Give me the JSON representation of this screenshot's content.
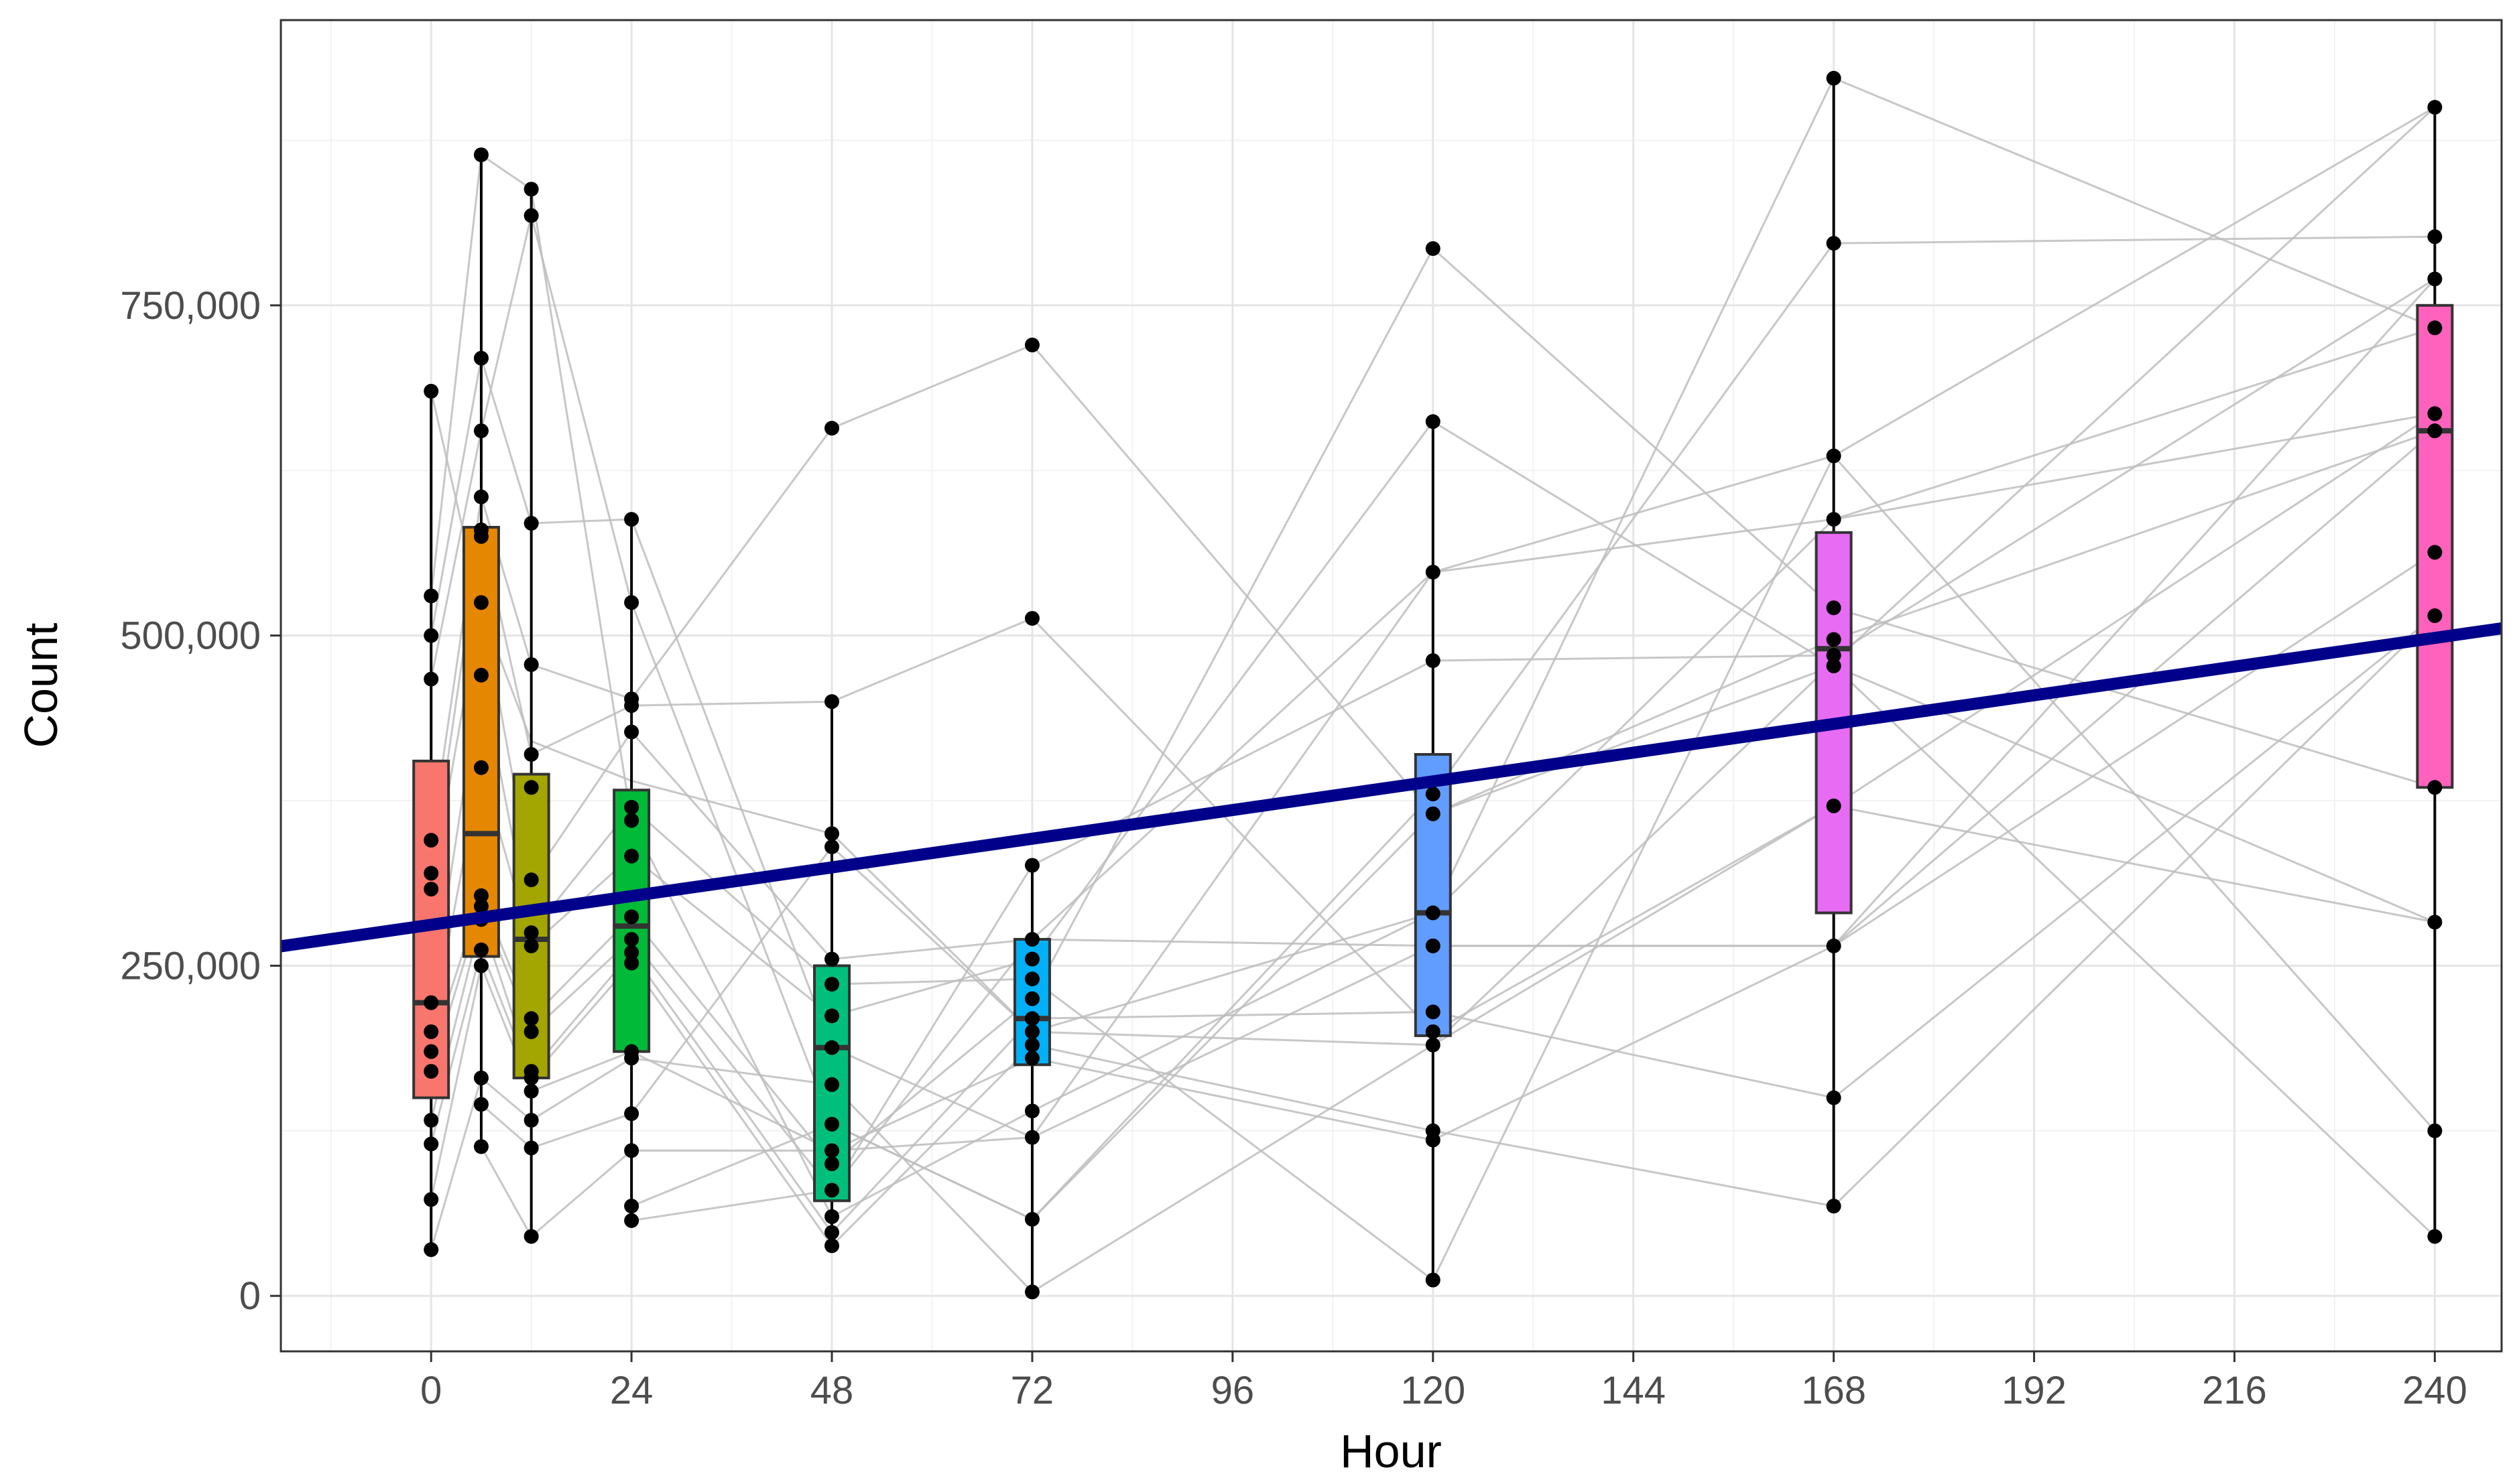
{
  "chart_data": {
    "type": "boxplot-with-points-and-trendline",
    "xlabel": "Hour",
    "ylabel": "Count",
    "xlim": [
      -18,
      248
    ],
    "ylim": [
      -42000,
      966000
    ],
    "x_ticks": [
      0,
      24,
      48,
      72,
      96,
      120,
      144,
      168,
      192,
      216,
      240
    ],
    "x_tick_labels": [
      "0",
      "24",
      "48",
      "72",
      "96",
      "120",
      "144",
      "168",
      "192",
      "216",
      "240"
    ],
    "y_ticks": [
      0,
      250000,
      500000,
      750000
    ],
    "y_tick_labels": [
      "0",
      "250,000",
      "500,000",
      "750,000"
    ],
    "grid": true,
    "boxes": [
      {
        "hour": 0,
        "color": "#F8766D",
        "q1": 150000,
        "median": 222000,
        "q3": 405000,
        "min": 35000,
        "max": 685000
      },
      {
        "hour": 6,
        "color": "#E58700",
        "q1": 257000,
        "median": 350000,
        "q3": 582000,
        "min": 113000,
        "max": 864000
      },
      {
        "hour": 12,
        "color": "#A3A500",
        "q1": 165000,
        "median": 270000,
        "q3": 395000,
        "min": 45000,
        "max": 838000
      },
      {
        "hour": 24,
        "color": "#00BA38",
        "q1": 185000,
        "median": 280000,
        "q3": 383000,
        "min": 57000,
        "max": 588000
      },
      {
        "hour": 48,
        "color": "#00BF7D",
        "q1": 72000,
        "median": 188000,
        "q3": 250000,
        "min": 38000,
        "max": 450000
      },
      {
        "hour": 72,
        "color": "#00B0F6",
        "q1": 175000,
        "median": 210000,
        "q3": 270000,
        "min": 3000,
        "max": 326000
      },
      {
        "hour": 120,
        "color": "#619CFF",
        "q1": 197000,
        "median": 290000,
        "q3": 410000,
        "min": 12000,
        "max": 662000
      },
      {
        "hour": 168,
        "color": "#E76BF3",
        "q1": 290000,
        "median": 490000,
        "q3": 578000,
        "min": 68000,
        "max": 922000
      },
      {
        "hour": 240,
        "color": "#FF62BC",
        "q1": 385000,
        "median": 655000,
        "q3": 750000,
        "min": 45000,
        "max": 900000
      }
    ],
    "points": [
      {
        "hour": 0,
        "values": [
          685000,
          530000,
          500000,
          467000,
          345000,
          320000,
          308000,
          222000,
          200000,
          185000,
          170000,
          133000,
          115000,
          73000,
          35000
        ]
      },
      {
        "hour": 6,
        "values": [
          864000,
          710000,
          655000,
          605000,
          580000,
          575000,
          525000,
          470000,
          400000,
          303000,
          295000,
          285000,
          262000,
          250000,
          165000,
          145000,
          113000
        ]
      },
      {
        "hour": 12,
        "values": [
          838000,
          818000,
          585000,
          478000,
          410000,
          385000,
          315000,
          275000,
          265000,
          210000,
          200000,
          170000,
          165000,
          155000,
          133000,
          112000,
          45000
        ]
      },
      {
        "hour": 24,
        "values": [
          588000,
          525000,
          452000,
          447000,
          427000,
          370000,
          360000,
          333000,
          287000,
          270000,
          260000,
          252000,
          185000,
          180000,
          138000,
          110000,
          68000,
          57000
        ]
      },
      {
        "hour": 48,
        "values": [
          657000,
          450000,
          350000,
          340000,
          255000,
          236000,
          212000,
          188000,
          160000,
          130000,
          110000,
          100000,
          80000,
          60000,
          48000,
          38000
        ]
      },
      {
        "hour": 72,
        "values": [
          720000,
          513000,
          326000,
          270000,
          255000,
          240000,
          225000,
          210000,
          200000,
          190000,
          180000,
          140000,
          120000,
          58000,
          3000
        ]
      },
      {
        "hour": 120,
        "values": [
          793000,
          662000,
          548000,
          481000,
          380000,
          365000,
          290000,
          265000,
          215000,
          200000,
          190000,
          125000,
          118000,
          12000
        ]
      },
      {
        "hour": 168,
        "values": [
          922000,
          797000,
          636000,
          588000,
          521000,
          497000,
          485000,
          477000,
          371000,
          265000,
          150000,
          68000
        ]
      },
      {
        "hour": 240,
        "values": [
          900000,
          802000,
          770000,
          733000,
          668000,
          655000,
          563000,
          515000,
          385000,
          283000,
          125000,
          45000
        ]
      }
    ],
    "trend_line": {
      "color": "#00008B",
      "intercept": 281000,
      "slope": 905.0,
      "x_from": -18,
      "x_to": 248
    },
    "subject_paths": [
      [
        [
          0,
          685000
        ],
        [
          6,
          520000
        ],
        [
          12,
          420000
        ],
        [
          24,
          390000
        ],
        [
          48,
          350000
        ],
        [
          72,
          200000
        ],
        [
          120,
          190000
        ],
        [
          168,
          480000
        ],
        [
          240,
          900000
        ]
      ],
      [
        [
          0,
          530000
        ],
        [
          6,
          864000
        ],
        [
          12,
          838000
        ],
        [
          24,
          360000
        ],
        [
          48,
          60000
        ],
        [
          72,
          140000
        ],
        [
          120,
          290000
        ],
        [
          168,
          922000
        ],
        [
          240,
          733000
        ]
      ],
      [
        [
          0,
          500000
        ],
        [
          6,
          710000
        ],
        [
          12,
          585000
        ],
        [
          24,
          588000
        ],
        [
          48,
          188000
        ],
        [
          72,
          120000
        ],
        [
          120,
          548000
        ],
        [
          168,
          588000
        ],
        [
          240,
          668000
        ]
      ],
      [
        [
          0,
          467000
        ],
        [
          6,
          655000
        ],
        [
          12,
          818000
        ],
        [
          24,
          525000
        ],
        [
          48,
          130000
        ],
        [
          72,
          58000
        ],
        [
          120,
          380000
        ],
        [
          168,
          797000
        ],
        [
          240,
          802000
        ]
      ],
      [
        [
          0,
          345000
        ],
        [
          6,
          605000
        ],
        [
          12,
          478000
        ],
        [
          24,
          452000
        ],
        [
          48,
          657000
        ],
        [
          72,
          720000
        ],
        [
          120,
          365000
        ],
        [
          168,
          497000
        ],
        [
          240,
          655000
        ]
      ],
      [
        [
          0,
          320000
        ],
        [
          6,
          580000
        ],
        [
          12,
          410000
        ],
        [
          24,
          447000
        ],
        [
          48,
          450000
        ],
        [
          72,
          513000
        ],
        [
          120,
          200000
        ],
        [
          168,
          371000
        ],
        [
          240,
          283000
        ]
      ],
      [
        [
          0,
          308000
        ],
        [
          6,
          525000
        ],
        [
          12,
          315000
        ],
        [
          24,
          427000
        ],
        [
          48,
          255000
        ],
        [
          72,
          270000
        ],
        [
          120,
          265000
        ],
        [
          168,
          265000
        ],
        [
          240,
          563000
        ]
      ],
      [
        [
          0,
          222000
        ],
        [
          6,
          470000
        ],
        [
          12,
          275000
        ],
        [
          24,
          370000
        ],
        [
          48,
          236000
        ],
        [
          72,
          240000
        ],
        [
          120,
          12000
        ],
        [
          168,
          636000
        ],
        [
          240,
          125000
        ]
      ],
      [
        [
          0,
          200000
        ],
        [
          6,
          400000
        ],
        [
          12,
          265000
        ],
        [
          24,
          333000
        ],
        [
          48,
          212000
        ],
        [
          72,
          255000
        ],
        [
          120,
          662000
        ],
        [
          168,
          477000
        ],
        [
          240,
          45000
        ]
      ],
      [
        [
          0,
          185000
        ],
        [
          6,
          303000
        ],
        [
          12,
          210000
        ],
        [
          24,
          287000
        ],
        [
          48,
          100000
        ],
        [
          72,
          225000
        ],
        [
          120,
          793000
        ],
        [
          168,
          521000
        ],
        [
          240,
          385000
        ]
      ],
      [
        [
          0,
          170000
        ],
        [
          6,
          295000
        ],
        [
          12,
          200000
        ],
        [
          24,
          270000
        ],
        [
          48,
          80000
        ],
        [
          72,
          326000
        ],
        [
          120,
          481000
        ],
        [
          168,
          485000
        ],
        [
          240,
          770000
        ]
      ],
      [
        [
          0,
          133000
        ],
        [
          6,
          285000
        ],
        [
          12,
          170000
        ],
        [
          24,
          260000
        ],
        [
          48,
          48000
        ],
        [
          72,
          210000
        ],
        [
          120,
          215000
        ],
        [
          168,
          150000
        ],
        [
          240,
          515000
        ]
      ],
      [
        [
          0,
          115000
        ],
        [
          6,
          262000
        ],
        [
          12,
          165000
        ],
        [
          24,
          252000
        ],
        [
          48,
          38000
        ],
        [
          72,
          190000
        ],
        [
          120,
          125000
        ],
        [
          168,
          68000
        ],
        [
          240,
          515000
        ]
      ],
      [
        [
          0,
          73000
        ],
        [
          6,
          250000
        ],
        [
          12,
          155000
        ],
        [
          24,
          185000
        ],
        [
          48,
          110000
        ],
        [
          72,
          180000
        ],
        [
          120,
          118000
        ],
        [
          168,
          265000
        ],
        [
          240,
          655000
        ]
      ],
      [
        [
          0,
          35000
        ],
        [
          6,
          165000
        ],
        [
          12,
          133000
        ],
        [
          24,
          180000
        ],
        [
          48,
          160000
        ],
        [
          72,
          3000
        ],
        [
          120,
          190000
        ],
        [
          168,
          371000
        ],
        [
          240,
          668000
        ]
      ],
      [
        [
          6,
          145000
        ],
        [
          12,
          112000
        ],
        [
          24,
          138000
        ],
        [
          48,
          340000
        ],
        [
          72,
          200000
        ],
        [
          120,
          290000
        ],
        [
          168,
          588000
        ],
        [
          240,
          733000
        ]
      ],
      [
        [
          6,
          113000
        ],
        [
          12,
          45000
        ],
        [
          24,
          110000
        ],
        [
          48,
          110000
        ],
        [
          72,
          120000
        ],
        [
          120,
          265000
        ],
        [
          168,
          265000
        ],
        [
          240,
          770000
        ]
      ],
      [
        [
          24,
          68000
        ],
        [
          48,
          130000
        ],
        [
          72,
          58000
        ],
        [
          120,
          365000
        ],
        [
          168,
          477000
        ],
        [
          240,
          283000
        ]
      ],
      [
        [
          24,
          57000
        ],
        [
          48,
          80000
        ],
        [
          72,
          270000
        ],
        [
          120,
          548000
        ],
        [
          168,
          636000
        ],
        [
          240,
          900000
        ]
      ]
    ]
  }
}
